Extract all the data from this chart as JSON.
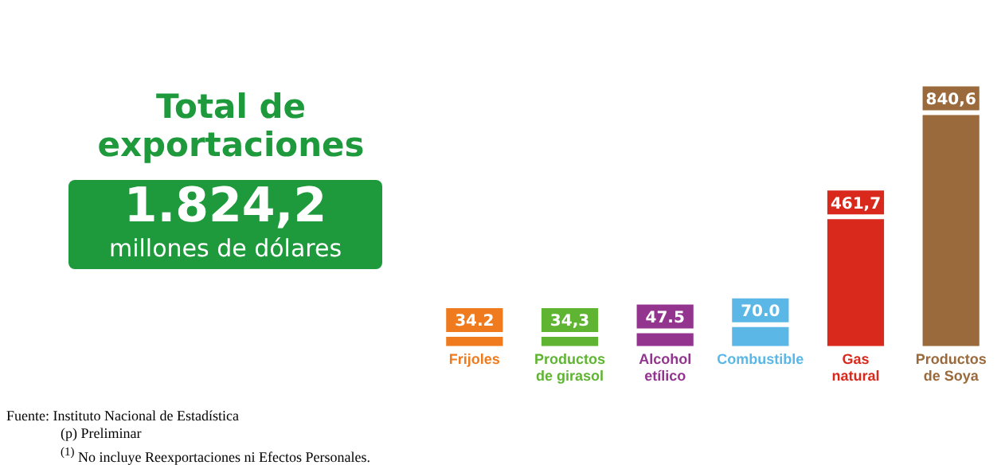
{
  "chart_data": {
    "type": "bar",
    "title": "Total de exportaciones",
    "categories": [
      "Frijoles",
      "Productos de girasol",
      "Alcohol etílico",
      "Combustible",
      "Gas natural",
      "Productos de Soya"
    ],
    "values": [
      34.2,
      34.3,
      47.5,
      70.0,
      461.7,
      840.6
    ],
    "colors": [
      "#f07b1e",
      "#5fb532",
      "#93358f",
      "#5bb8e6",
      "#d9291c",
      "#9a6a3c"
    ],
    "value_labels": [
      "34.2",
      "34,3",
      "47.5",
      "70.0",
      "461,7",
      "840,6"
    ],
    "annotations": [
      "1.824,2",
      "millones de dólares",
      "Fuente: Instituto Nacional de Estadística",
      "(p) Preliminar",
      "$^{(1)}$ No incluye Reexportaciones ni Efectos Personales."
    ],
    "grid": false,
    "legend": false
  }
}
